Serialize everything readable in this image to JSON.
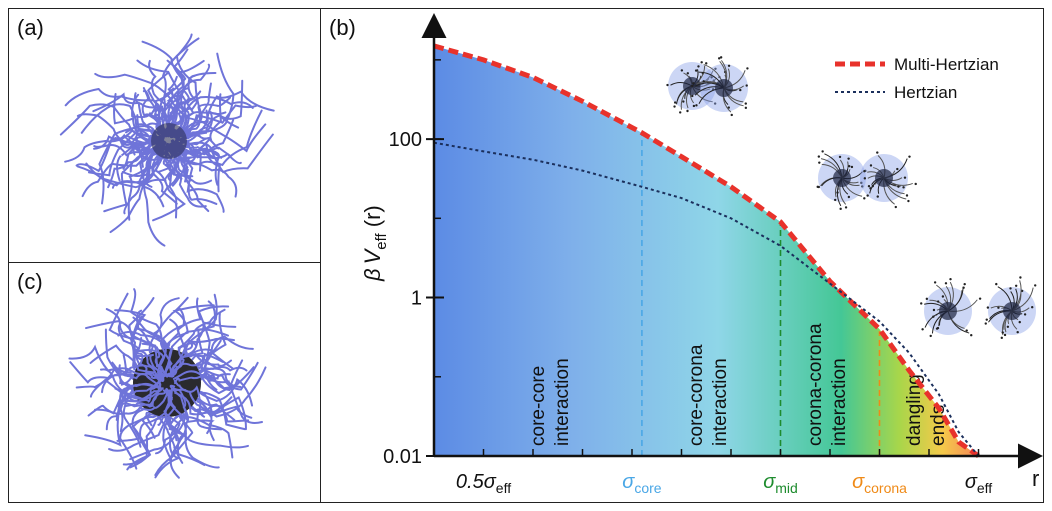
{
  "panels": {
    "a": {
      "label": "(a)"
    },
    "b": {
      "label": "(b)"
    },
    "c": {
      "label": "(c)"
    }
  },
  "chart_data": {
    "type": "line",
    "ylabel_html": [
      "β",
      "V",
      "eff",
      " (r)"
    ],
    "xlabel": "r",
    "yscale": "log",
    "ylim": [
      0.01,
      2000
    ],
    "yticks": [
      {
        "value": 100,
        "label": "100"
      },
      {
        "value": 1,
        "label": "1"
      },
      {
        "value": 0.01,
        "label": "0.01"
      }
    ],
    "xticks": [
      {
        "x": 0.5,
        "base": "0.5σ",
        "sub": "eff",
        "color": "#111111"
      },
      {
        "x": 0.66,
        "base": "σ",
        "sub": "core",
        "color": "#4aa7e6"
      },
      {
        "x": 0.8,
        "base": "σ",
        "sub": "mid",
        "color": "#1e8c2e"
      },
      {
        "x": 0.9,
        "base": "σ",
        "sub": "corona",
        "color": "#ef8a17"
      },
      {
        "x": 1.0,
        "base": "σ",
        "sub": "eff",
        "color": "#111111"
      }
    ],
    "series": [
      {
        "name": "Multi-Hertzian",
        "color": "#e8322b",
        "style": "dashed-thick",
        "x": [
          0.45,
          0.5,
          0.55,
          0.6,
          0.66,
          0.7,
          0.75,
          0.8,
          0.85,
          0.9,
          0.93,
          0.96,
          0.98,
          1.0
        ],
        "y": [
          1500,
          1000,
          600,
          300,
          120,
          60,
          25,
          9,
          1.6,
          0.4,
          0.12,
          0.04,
          0.015,
          0.01
        ]
      },
      {
        "name": "Hertzian",
        "color": "#1b2f5c",
        "style": "dotted",
        "x": [
          0.45,
          0.5,
          0.55,
          0.6,
          0.66,
          0.7,
          0.75,
          0.8,
          0.85,
          0.9,
          0.93,
          0.96,
          0.98,
          1.0
        ],
        "y": [
          90,
          70,
          55,
          40,
          25,
          18,
          10,
          4.5,
          1.5,
          0.5,
          0.2,
          0.06,
          0.02,
          0.01
        ]
      }
    ],
    "regions": [
      {
        "text": [
          "core-core",
          "interaction"
        ],
        "x": 0.575
      },
      {
        "text": [
          "core-corona",
          "interaction"
        ],
        "x": 0.735
      },
      {
        "text": [
          "corona-corona",
          "interaction"
        ],
        "x": 0.855
      },
      {
        "text": [
          "dangling",
          "ends"
        ],
        "x": 0.955
      }
    ],
    "vlines": [
      {
        "x": 0.66,
        "color": "#4aa7e6"
      },
      {
        "x": 0.8,
        "color": "#1e8c2e"
      },
      {
        "x": 0.9,
        "color": "#ef8a17"
      }
    ],
    "legend": {
      "placement": "top-right"
    }
  }
}
